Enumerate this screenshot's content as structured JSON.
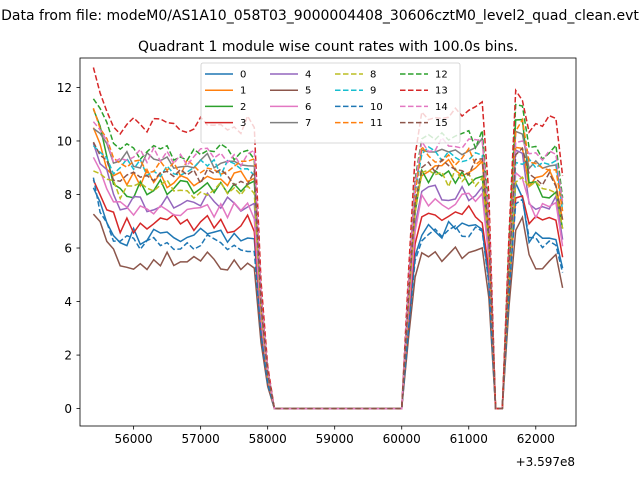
{
  "chart_data": {
    "type": "line",
    "suptitle": "Data from file: modeM0/AS1A10_058T03_9000004408_30606cztM0_level2_quad_clean.evt",
    "title": "Quadrant 1 module wise count rates with 100.0s bins.",
    "xlabel": "",
    "ylabel": "",
    "x_offset_label": "+3.597e8",
    "xlim": [
      55200,
      62600
    ],
    "ylim": [
      -0.65,
      13.1
    ],
    "x_ticks": [
      56000,
      57000,
      58000,
      59000,
      60000,
      61000,
      62000
    ],
    "x_tick_labels": [
      "56000",
      "57000",
      "58000",
      "59000",
      "60000",
      "61000",
      "62000"
    ],
    "y_ticks": [
      0,
      2,
      4,
      6,
      8,
      10,
      12
    ],
    "y_tick_labels": [
      "0",
      "2",
      "4",
      "6",
      "8",
      "10",
      "12"
    ],
    "grid": false,
    "legend_position": "top-center",
    "legend_columns": 4,
    "time_segments": [
      {
        "start": 55400,
        "end": 62400,
        "step": 100
      }
    ],
    "profile": {
      "gap1": [
        57900,
        58000,
        58100
      ],
      "gap1_factors": [
        0.45,
        0.15,
        0.0
      ],
      "gap2_end": 60000,
      "rise2": [
        60100,
        60200
      ],
      "rise2_factors": [
        0.45,
        0.85
      ],
      "dip": [
        61300,
        61400,
        61500,
        61600
      ],
      "dip_factors": [
        0.75,
        0.0,
        0.0,
        0.55
      ]
    },
    "series": [
      {
        "name": "0",
        "color": "#1f77b4",
        "dash": false,
        "level": 6.4,
        "start": 8.6
      },
      {
        "name": "1",
        "color": "#ff7f0e",
        "dash": false,
        "level": 8.6,
        "start": 10.2
      },
      {
        "name": "2",
        "color": "#2ca02c",
        "dash": false,
        "level": 8.2,
        "start": 11.5
      },
      {
        "name": "3",
        "color": "#d62728",
        "dash": false,
        "level": 6.9,
        "start": 8.5
      },
      {
        "name": "4",
        "color": "#9467bd",
        "dash": false,
        "level": 7.7,
        "start": 10.0
      },
      {
        "name": "5",
        "color": "#8c564b",
        "dash": false,
        "level": 5.5,
        "start": 7.3
      },
      {
        "name": "6",
        "color": "#e377c2",
        "dash": false,
        "level": 7.4,
        "start": 9.3
      },
      {
        "name": "7",
        "color": "#7f7f7f",
        "dash": false,
        "level": 9.3,
        "start": 10.7
      },
      {
        "name": "8",
        "color": "#bcbd22",
        "dash": true,
        "level": 8.2,
        "start": 9.0
      },
      {
        "name": "9",
        "color": "#17becf",
        "dash": true,
        "level": 9.0,
        "start": 9.8
      },
      {
        "name": "10",
        "color": "#1f77b4",
        "dash": true,
        "level": 6.2,
        "start": 8.3
      },
      {
        "name": "11",
        "color": "#ff7f0e",
        "dash": true,
        "level": 9.0,
        "start": 11.0
      },
      {
        "name": "12",
        "color": "#2ca02c",
        "dash": true,
        "level": 9.6,
        "start": 11.8
      },
      {
        "name": "13",
        "color": "#d62728",
        "dash": true,
        "level": 10.6,
        "start": 12.4
      },
      {
        "name": "14",
        "color": "#e377c2",
        "dash": true,
        "level": 9.4,
        "start": 10.5
      },
      {
        "name": "15",
        "color": "#8c564b",
        "dash": true,
        "level": 8.6,
        "start": 10.0
      }
    ]
  }
}
